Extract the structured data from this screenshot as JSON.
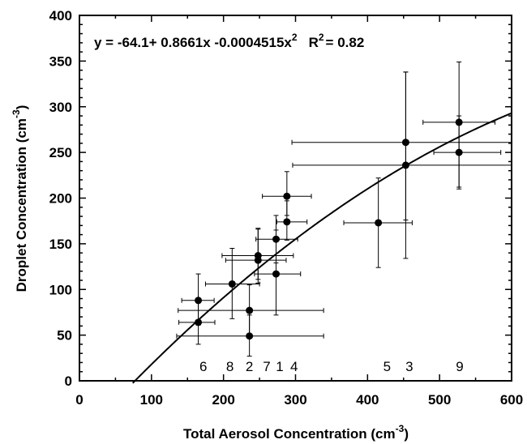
{
  "chart_data": {
    "type": "scatter",
    "title": "",
    "xlabel": "Total Aerosol Concentration (cm",
    "xlabel_sup": "-3",
    "xlabel_tail": ")",
    "ylabel": "Droplet Concentration (cm",
    "ylabel_sup": "-3",
    "ylabel_tail": ")",
    "xlim": [
      0,
      600
    ],
    "ylim": [
      0,
      400
    ],
    "xticks": [
      0,
      100,
      200,
      300,
      400,
      500,
      600
    ],
    "yticks": [
      0,
      50,
      100,
      150,
      200,
      250,
      300,
      350,
      400
    ],
    "grid": false,
    "legend": "none",
    "equation": {
      "text1": "y = -64.1+ 0.8661x -0.0004515x",
      "sup": "2",
      "text2": "R",
      "sup2": "2",
      "text3": "= 0.82"
    },
    "fit": {
      "a": -64.1,
      "b": 0.8661,
      "c": -0.0004515,
      "x_from": 74,
      "x_to": 600
    },
    "points": [
      {
        "x": 165,
        "y": 88,
        "xerr": [
          23,
          22
        ],
        "yerr": [
          27,
          29
        ]
      },
      {
        "x": 165,
        "y": 64,
        "xerr": [
          27,
          23
        ],
        "yerr": [
          24,
          23
        ]
      },
      {
        "x": 212,
        "y": 106,
        "xerr": [
          37,
          38
        ],
        "yerr": [
          38,
          39
        ]
      },
      {
        "x": 236,
        "y": 77,
        "xerr": [
          99,
          103
        ],
        "yerr": [
          28,
          28
        ]
      },
      {
        "x": 236,
        "y": 49,
        "xerr": [
          101,
          103
        ],
        "yerr": [
          22,
          23
        ]
      },
      {
        "x": 248,
        "y": 137,
        "xerr": [
          50,
          49
        ],
        "yerr": [
          26,
          30
        ]
      },
      {
        "x": 248,
        "y": 132,
        "xerr": [
          45,
          39
        ],
        "yerr": [
          25,
          34
        ]
      },
      {
        "x": 273,
        "y": 155,
        "xerr": [
          28,
          30
        ],
        "yerr": [
          26,
          26
        ]
      },
      {
        "x": 273,
        "y": 117,
        "xerr": [
          30,
          34
        ],
        "yerr": [
          45,
          48
        ]
      },
      {
        "x": 288,
        "y": 202,
        "xerr": [
          34,
          34
        ],
        "yerr": [
          21,
          27
        ]
      },
      {
        "x": 288,
        "y": 174,
        "xerr": [
          14,
          28
        ],
        "yerr": [
          20,
          23
        ]
      },
      {
        "x": 415,
        "y": 173,
        "xerr": [
          48,
          47
        ],
        "yerr": [
          49,
          49
        ]
      },
      {
        "x": 453,
        "y": 261,
        "xerr": [
          158,
          147
        ],
        "yerr": [
          85,
          77
        ]
      },
      {
        "x": 453,
        "y": 236,
        "xerr": [
          157,
          147
        ],
        "yerr": [
          102,
          102
        ]
      },
      {
        "x": 527,
        "y": 283,
        "xerr": [
          50,
          50
        ],
        "yerr": [
          71,
          66
        ]
      },
      {
        "x": 527,
        "y": 250,
        "xerr": [
          35,
          58
        ],
        "yerr": [
          40,
          40
        ]
      }
    ],
    "annotations": [
      {
        "text": "6",
        "x": 172,
        "y": 16
      },
      {
        "text": "8",
        "x": 209,
        "y": 16
      },
      {
        "text": "2",
        "x": 236,
        "y": 16
      },
      {
        "text": "7",
        "x": 260,
        "y": 16
      },
      {
        "text": "1",
        "x": 278,
        "y": 16
      },
      {
        "text": "4",
        "x": 298,
        "y": 16
      },
      {
        "text": "5",
        "x": 427,
        "y": 16
      },
      {
        "text": "3",
        "x": 458,
        "y": 16
      },
      {
        "text": "9",
        "x": 528,
        "y": 16
      }
    ]
  }
}
